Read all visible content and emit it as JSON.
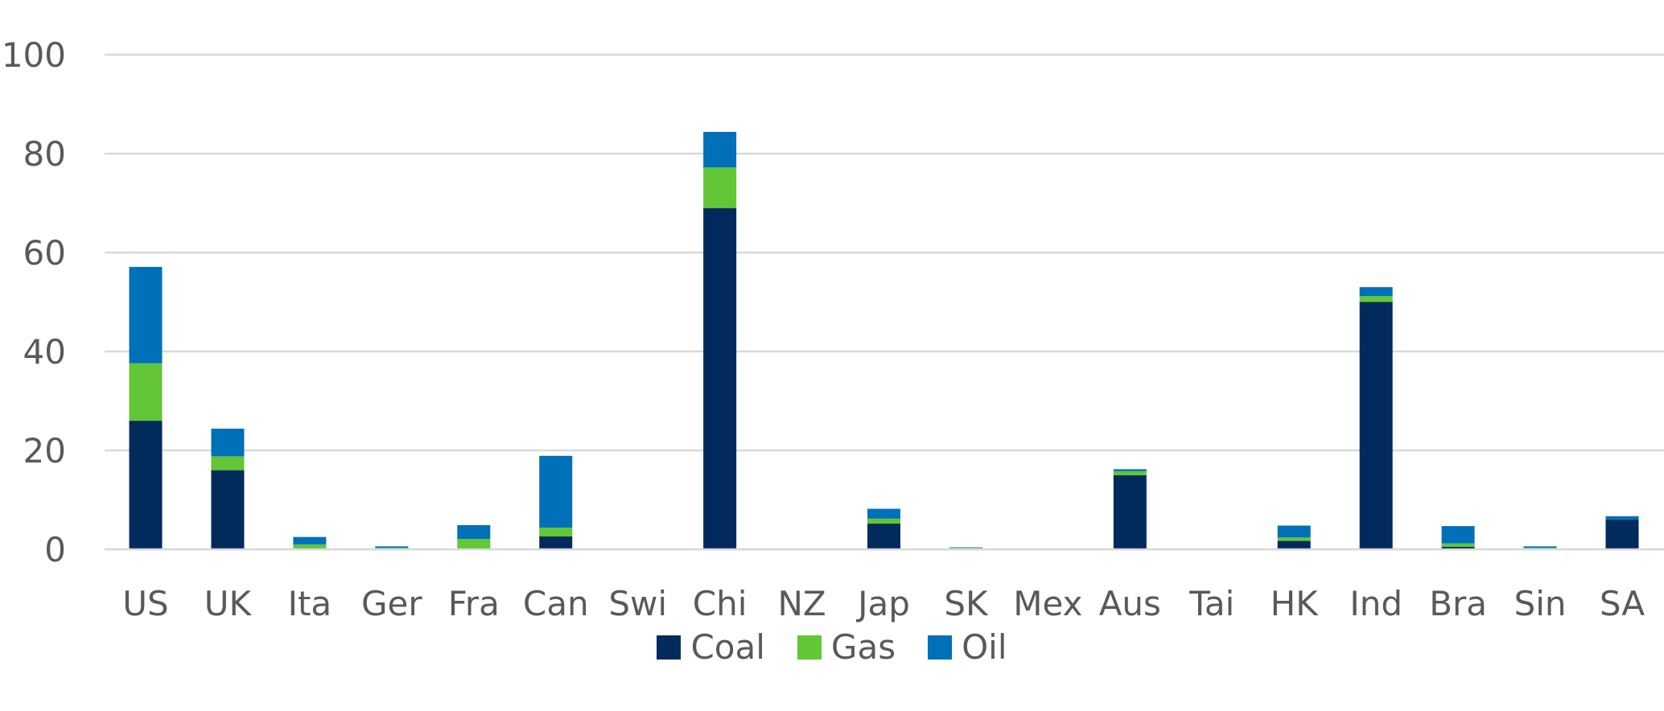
{
  "chart_data": {
    "type": "bar",
    "stacked": true,
    "title": "",
    "xlabel": "",
    "ylabel": "",
    "ylim": [
      0,
      100
    ],
    "yticks": [
      0,
      20,
      40,
      60,
      80,
      100
    ],
    "grid": true,
    "legend_position": "bottom",
    "categories": [
      "US",
      "UK",
      "Ita",
      "Ger",
      "Fra",
      "Can",
      "Swi",
      "Chi",
      "NZ",
      "Jap",
      "SK",
      "Mex",
      "Aus",
      "Tai",
      "HK",
      "Ind",
      "Bra",
      "Sin",
      "SA"
    ],
    "series": [
      {
        "name": "Coal",
        "color": "#002B5C",
        "values": [
          26,
          16,
          0.2,
          0.2,
          0.2,
          2.6,
          0,
          69,
          0,
          5.2,
          0.2,
          0,
          15,
          0,
          1.7,
          50,
          0.5,
          0.2,
          6
        ]
      },
      {
        "name": "Gas",
        "color": "#62C636",
        "values": [
          11.6,
          2.8,
          0.8,
          0.1,
          1.9,
          1.8,
          0,
          8.2,
          0,
          1,
          0.1,
          0,
          0.8,
          0,
          0.7,
          1.2,
          0.7,
          0.1,
          0
        ]
      },
      {
        "name": "Oil",
        "color": "#0070B8",
        "values": [
          19.5,
          5.6,
          1.5,
          0.3,
          2.8,
          14.5,
          0,
          7.2,
          0,
          2,
          0.1,
          0,
          0.4,
          0,
          2.4,
          1.8,
          3.5,
          0.3,
          0.7
        ]
      }
    ]
  }
}
